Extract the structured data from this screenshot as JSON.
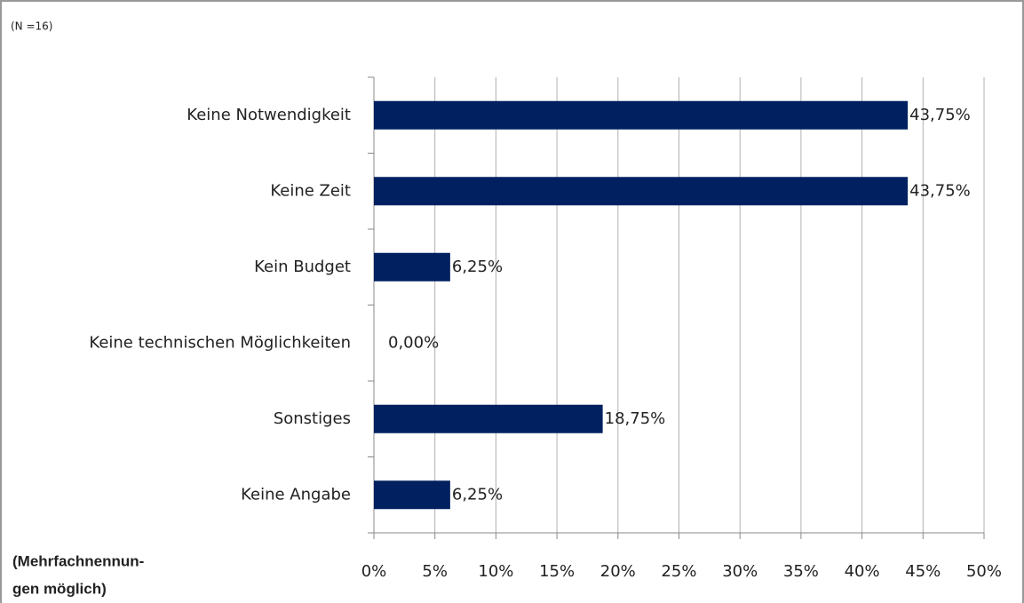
{
  "chart_data": {
    "type": "bar",
    "orientation": "horizontal",
    "note": "(N =16)",
    "footnote": [
      "(Mehrfachnennun-",
      "gen möglich)"
    ],
    "categories": [
      "Keine Notwendigkeit",
      "Keine Zeit",
      "Kein Budget",
      "Keine technischen Möglichkeiten",
      "Sonstiges",
      "Keine Angabe"
    ],
    "values": [
      43.75,
      43.75,
      6.25,
      0,
      18.75,
      6.25
    ],
    "value_labels": [
      "43,75%",
      "43,75%",
      "6,25%",
      "0,00%",
      "18,75%",
      "6,25%"
    ],
    "color": "#002060",
    "xlim": [
      0,
      50
    ],
    "xticks": [
      {
        "value": 0,
        "label": "0%"
      },
      {
        "value": 5,
        "label": "5%"
      },
      {
        "value": 10,
        "label": "10%"
      },
      {
        "value": 15,
        "label": "15%"
      },
      {
        "value": 20,
        "label": "20%"
      },
      {
        "value": 25,
        "label": "25%"
      },
      {
        "value": 30,
        "label": "30%"
      },
      {
        "value": 35,
        "label": "35%"
      },
      {
        "value": 40,
        "label": "40%"
      },
      {
        "value": 45,
        "label": "45%"
      },
      {
        "value": 50,
        "label": "50%"
      }
    ],
    "grid": true
  }
}
